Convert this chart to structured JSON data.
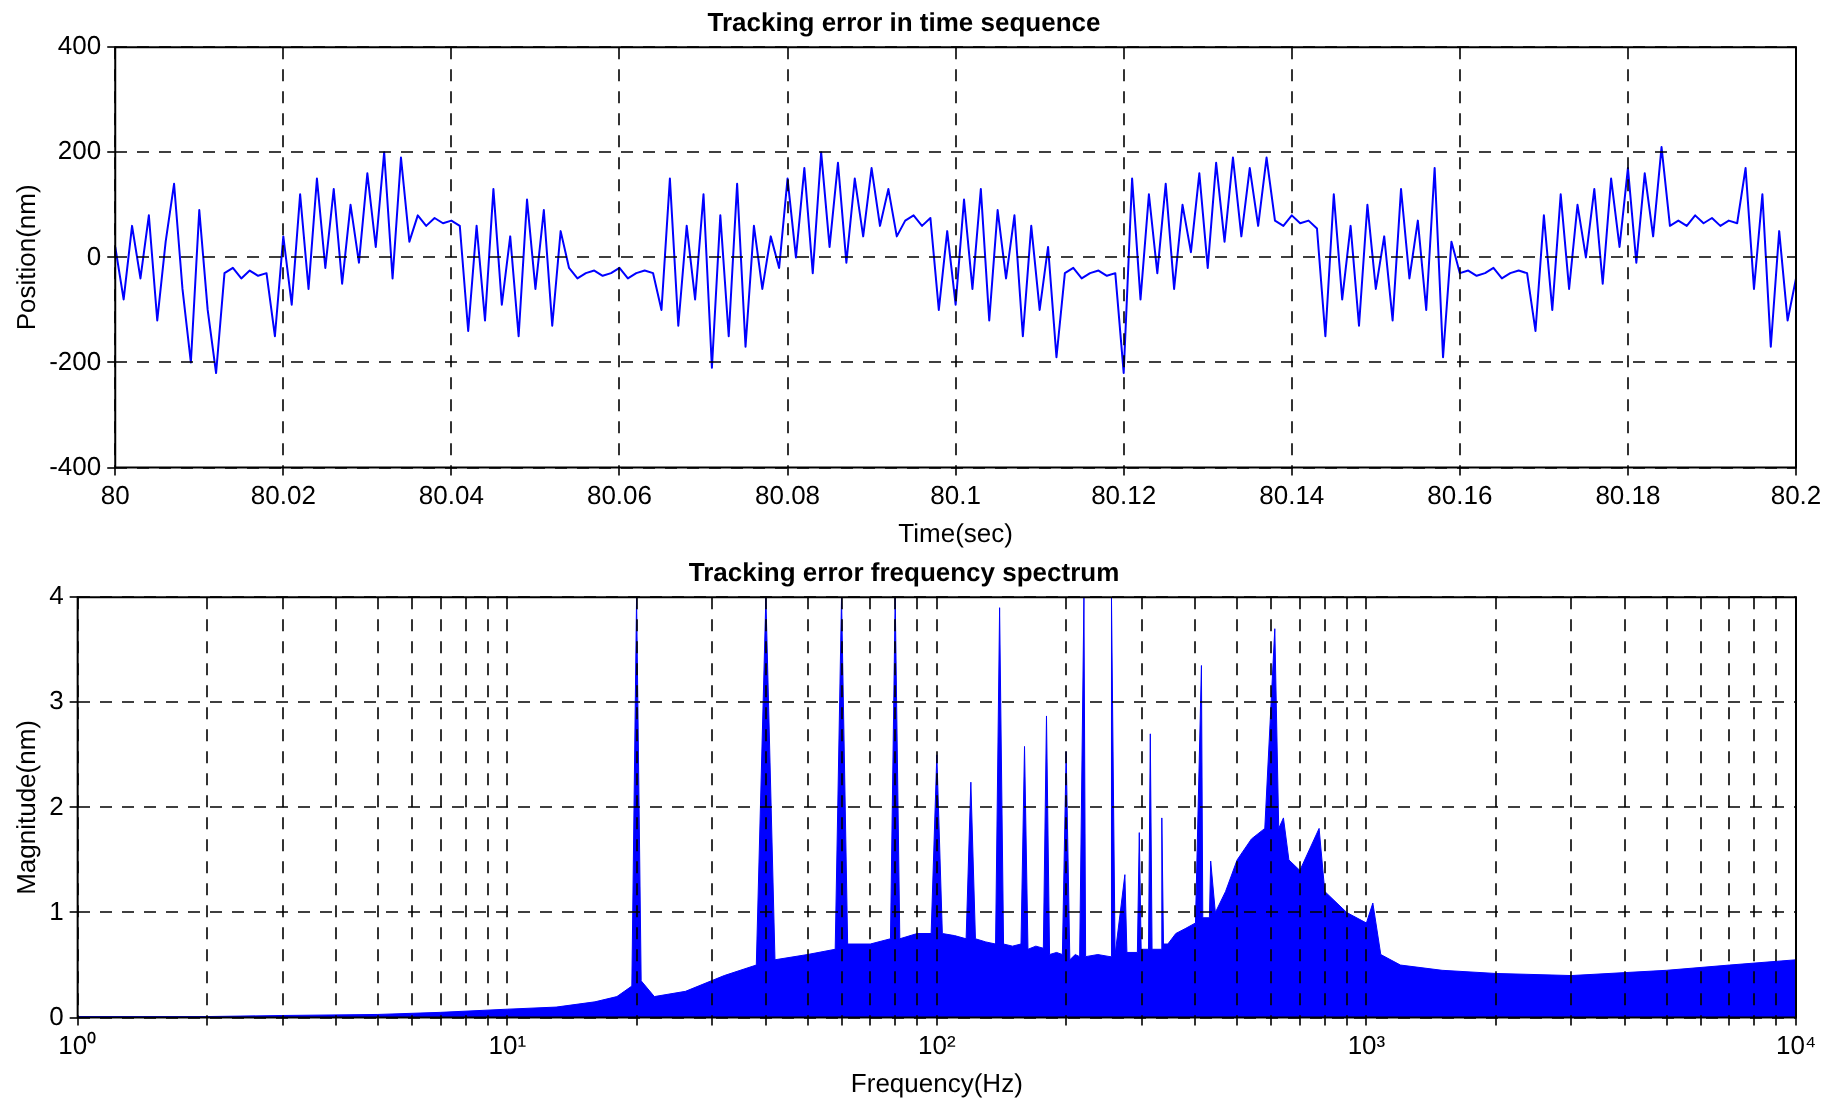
{
  "chart_data": [
    {
      "type": "line",
      "title": "Tracking error in time sequence",
      "xlabel": "Time(sec)",
      "ylabel": "Position(nm)",
      "xlim": [
        80,
        80.2
      ],
      "xticks": [
        80,
        80.02,
        80.04,
        80.06,
        80.08,
        80.1,
        80.12,
        80.14,
        80.16,
        80.18,
        80.2
      ],
      "ylim": [
        -400,
        400
      ],
      "yticks": [
        -400,
        -200,
        0,
        200,
        400
      ],
      "grid": true,
      "series": [
        {
          "color": "#0000ff",
          "x": [
            80,
            80.001,
            80.002,
            80.003,
            80.004,
            80.005,
            80.006,
            80.007,
            80.008,
            80.009,
            80.01,
            80.011,
            80.012,
            80.013,
            80.014,
            80.015,
            80.016,
            80.017,
            80.018,
            80.019,
            80.02,
            80.021,
            80.022,
            80.023,
            80.024,
            80.025,
            80.026,
            80.027,
            80.028,
            80.029,
            80.03,
            80.031,
            80.032,
            80.033,
            80.034,
            80.035,
            80.036,
            80.037,
            80.038,
            80.039,
            80.04,
            80.041,
            80.042,
            80.043,
            80.044,
            80.045,
            80.046,
            80.047,
            80.048,
            80.049,
            80.05,
            80.051,
            80.052,
            80.053,
            80.054,
            80.055,
            80.056,
            80.057,
            80.058,
            80.059,
            80.06,
            80.061,
            80.062,
            80.063,
            80.064,
            80.065,
            80.066,
            80.067,
            80.068,
            80.069,
            80.07,
            80.071,
            80.072,
            80.073,
            80.074,
            80.075,
            80.076,
            80.077,
            80.078,
            80.079,
            80.08,
            80.081,
            80.082,
            80.083,
            80.084,
            80.085,
            80.086,
            80.087,
            80.088,
            80.089,
            80.09,
            80.091,
            80.092,
            80.093,
            80.094,
            80.095,
            80.096,
            80.097,
            80.098,
            80.099,
            80.1,
            80.101,
            80.102,
            80.103,
            80.104,
            80.105,
            80.106,
            80.107,
            80.108,
            80.109,
            80.11,
            80.111,
            80.112,
            80.113,
            80.114,
            80.115,
            80.116,
            80.117,
            80.118,
            80.119,
            80.12,
            80.121,
            80.122,
            80.123,
            80.124,
            80.125,
            80.126,
            80.127,
            80.128,
            80.129,
            80.13,
            80.131,
            80.132,
            80.133,
            80.134,
            80.135,
            80.136,
            80.137,
            80.138,
            80.139,
            80.14,
            80.141,
            80.142,
            80.143,
            80.144,
            80.145,
            80.146,
            80.147,
            80.148,
            80.149,
            80.15,
            80.151,
            80.152,
            80.153,
            80.154,
            80.155,
            80.156,
            80.157,
            80.158,
            80.159,
            80.16,
            80.161,
            80.162,
            80.163,
            80.164,
            80.165,
            80.166,
            80.167,
            80.168,
            80.169,
            80.17,
            80.171,
            80.172,
            80.173,
            80.174,
            80.175,
            80.176,
            80.177,
            80.178,
            80.179,
            80.18,
            80.181,
            80.182,
            80.183,
            80.184,
            80.185,
            80.186,
            80.187,
            80.188,
            80.189,
            80.19,
            80.191,
            80.192,
            80.193,
            80.194,
            80.195,
            80.196,
            80.197,
            80.198,
            80.199,
            80.2
          ],
          "values": [
            20,
            -80,
            60,
            -40,
            80,
            -120,
            30,
            140,
            -60,
            -200,
            90,
            -100,
            -220,
            -30,
            -20,
            -40,
            -25,
            -35,
            -30,
            -150,
            40,
            -90,
            120,
            -60,
            150,
            -20,
            130,
            -50,
            100,
            -10,
            160,
            20,
            200,
            -40,
            190,
            30,
            80,
            60,
            75,
            65,
            70,
            60,
            -140,
            60,
            -120,
            130,
            -90,
            40,
            -150,
            110,
            -60,
            90,
            -130,
            50,
            -20,
            -40,
            -30,
            -25,
            -35,
            -30,
            -20,
            -40,
            -30,
            -25,
            -30,
            -100,
            150,
            -130,
            60,
            -80,
            120,
            -210,
            80,
            -150,
            140,
            -170,
            60,
            -60,
            40,
            -20,
            150,
            0,
            170,
            -30,
            200,
            20,
            180,
            -10,
            150,
            40,
            170,
            60,
            130,
            40,
            70,
            80,
            60,
            75,
            -100,
            50,
            -90,
            110,
            -60,
            130,
            -120,
            90,
            -40,
            80,
            -150,
            60,
            -100,
            20,
            -190,
            -30,
            -20,
            -40,
            -30,
            -25,
            -35,
            -30,
            -220,
            150,
            -80,
            120,
            -30,
            140,
            -60,
            100,
            10,
            160,
            -20,
            180,
            30,
            190,
            40,
            170,
            60,
            190,
            70,
            60,
            80,
            65,
            70,
            55,
            -150,
            120,
            -80,
            60,
            -130,
            100,
            -60,
            40,
            -120,
            130,
            -40,
            70,
            -100,
            170,
            -190,
            30,
            -30,
            -25,
            -35,
            -30,
            -20,
            -40,
            -30,
            -25,
            -30,
            -140,
            80,
            -100,
            120,
            -60,
            100,
            0,
            130,
            -50,
            150,
            20,
            170,
            -10,
            160,
            40,
            210,
            60,
            70,
            60,
            80,
            65,
            75,
            60,
            70,
            65,
            170,
            -60,
            120,
            -170,
            50,
            -120,
            -40
          ]
        }
      ]
    },
    {
      "type": "area",
      "title": "Tracking error frequency spectrum",
      "xlabel": "Frequency(Hz)",
      "ylabel": "Magnitude(nm)",
      "log": "x",
      "xlim": [
        1,
        10000
      ],
      "xticks": [
        {
          "value": 1,
          "label": "10⁰"
        },
        {
          "value": 2,
          "label": null
        },
        {
          "value": 3,
          "label": null
        },
        {
          "value": 4,
          "label": null
        },
        {
          "value": 5,
          "label": null
        },
        {
          "value": 6,
          "label": null
        },
        {
          "value": 7,
          "label": null
        },
        {
          "value": 8,
          "label": null
        },
        {
          "value": 9,
          "label": null
        },
        {
          "value": 10,
          "label": "10¹"
        },
        {
          "value": 20,
          "label": null
        },
        {
          "value": 30,
          "label": null
        },
        {
          "value": 40,
          "label": null
        },
        {
          "value": 50,
          "label": null
        },
        {
          "value": 60,
          "label": null
        },
        {
          "value": 70,
          "label": null
        },
        {
          "value": 80,
          "label": null
        },
        {
          "value": 90,
          "label": null
        },
        {
          "value": 100,
          "label": "10²"
        },
        {
          "value": 200,
          "label": null
        },
        {
          "value": 300,
          "label": null
        },
        {
          "value": 400,
          "label": null
        },
        {
          "value": 500,
          "label": null
        },
        {
          "value": 600,
          "label": null
        },
        {
          "value": 700,
          "label": null
        },
        {
          "value": 800,
          "label": null
        },
        {
          "value": 900,
          "label": null
        },
        {
          "value": 1000,
          "label": "10³"
        },
        {
          "value": 2000,
          "label": null
        },
        {
          "value": 3000,
          "label": null
        },
        {
          "value": 4000,
          "label": null
        },
        {
          "value": 5000,
          "label": null
        },
        {
          "value": 6000,
          "label": null
        },
        {
          "value": 7000,
          "label": null
        },
        {
          "value": 8000,
          "label": null
        },
        {
          "value": 9000,
          "label": null
        },
        {
          "value": 10000,
          "label": "10⁴"
        }
      ],
      "ylim": [
        0,
        4
      ],
      "yticks": [
        0,
        1,
        2,
        3,
        4
      ],
      "grid": true,
      "series": [
        {
          "color": "#0000ff",
          "x": [
            1,
            2,
            3,
            5,
            7,
            10,
            13,
            16,
            18,
            19.5,
            20,
            20.5,
            22,
            26,
            32,
            38,
            40,
            42,
            50,
            58,
            60,
            62,
            70,
            78,
            80,
            82,
            90,
            97,
            100,
            103,
            110,
            117,
            120,
            123,
            130,
            137,
            140,
            143,
            150,
            157,
            160,
            163,
            170,
            177,
            180,
            183,
            190,
            196,
            200,
            204,
            210,
            215,
            220,
            222,
            237,
            253,
            255,
            260,
            274,
            277,
            293,
            296,
            299,
            311,
            314,
            317,
            331,
            334,
            337,
            345,
            360,
            380,
            400,
            413,
            416,
            431,
            434,
            445,
            470,
            500,
            540,
            580,
            612,
            625,
            641,
            660,
            700,
            776,
            800,
            900,
            1000,
            1035,
            1080,
            1200,
            1500,
            2000,
            3000,
            5000,
            7000,
            10000
          ],
          "values": [
            0.01,
            0.01,
            0.02,
            0.03,
            0.05,
            0.08,
            0.1,
            0.15,
            0.2,
            0.3,
            4,
            0.35,
            0.2,
            0.25,
            0.4,
            0.5,
            4,
            0.55,
            0.6,
            0.65,
            4,
            0.7,
            0.7,
            0.75,
            4,
            0.75,
            0.8,
            0.8,
            2.5,
            0.8,
            0.78,
            0.75,
            2.24,
            0.75,
            0.72,
            0.7,
            3.9,
            0.7,
            0.68,
            0.7,
            2.58,
            0.65,
            0.68,
            0.66,
            2.87,
            0.6,
            0.62,
            0.6,
            2.53,
            0.55,
            0.6,
            0.58,
            4,
            0.58,
            0.6,
            0.58,
            4,
            0.6,
            1.36,
            0.62,
            0.62,
            1.76,
            0.65,
            0.65,
            2.7,
            0.65,
            0.65,
            1.9,
            0.7,
            0.7,
            0.8,
            0.85,
            0.9,
            3.35,
            0.95,
            0.95,
            1.49,
            1.0,
            1.2,
            1.5,
            1.7,
            1.8,
            3.7,
            1.8,
            1.9,
            1.5,
            1.4,
            1.8,
            1.2,
            1.0,
            0.9,
            1.09,
            0.6,
            0.5,
            0.45,
            0.42,
            0.4,
            0.45,
            0.5,
            0.55
          ]
        }
      ]
    }
  ]
}
